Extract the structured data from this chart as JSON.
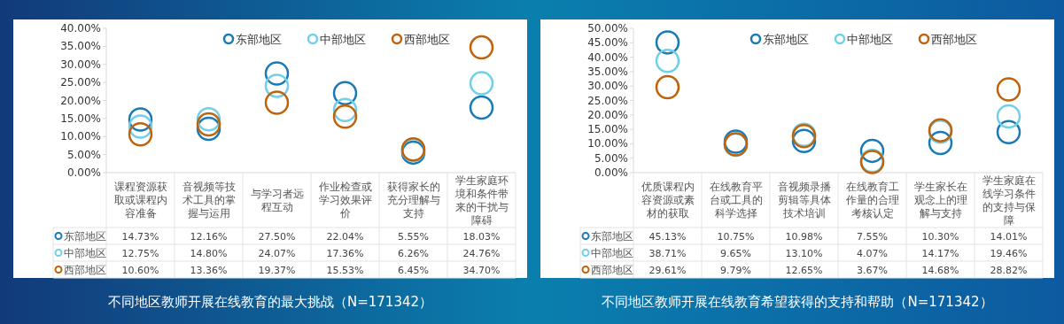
{
  "chart_data": [
    {
      "type": "scatter",
      "title": "不同地区教师开展在线教育的最大挑战（N=171342）",
      "categories": [
        "课程资源获取或课程内容准备",
        "音视频等技术工具的掌握与运用",
        "与学习者远程互动",
        "作业检查或学习效果评价",
        "获得家长的充分理解与支持",
        "学生家庭环境和条件带来的干扰与障碍"
      ],
      "series": [
        {
          "name": "东部地区",
          "color": "#1a7ab5",
          "values": [
            14.73,
            12.16,
            27.5,
            22.04,
            5.55,
            18.03
          ],
          "value_labels": [
            "14.73%",
            "12.16%",
            "27.50%",
            "22.04%",
            "5.55%",
            "18.03%"
          ]
        },
        {
          "name": "中部地区",
          "color": "#6fd0e8",
          "values": [
            12.75,
            14.8,
            24.07,
            17.36,
            6.26,
            24.76
          ],
          "value_labels": [
            "12.75%",
            "14.80%",
            "24.07%",
            "17.36%",
            "6.26%",
            "24.76%"
          ]
        },
        {
          "name": "西部地区",
          "color": "#c0620a",
          "values": [
            10.6,
            13.36,
            19.37,
            15.53,
            6.45,
            34.7
          ],
          "value_labels": [
            "10.60%",
            "13.36%",
            "19.37%",
            "15.53%",
            "6.45%",
            "34.70%"
          ]
        }
      ],
      "ylim": [
        0,
        40
      ],
      "yticks": [
        {
          "value": 0,
          "label": "0.00%"
        },
        {
          "value": 5,
          "label": "5.00%"
        },
        {
          "value": 10,
          "label": "10.00%"
        },
        {
          "value": 15,
          "label": "15.00%"
        },
        {
          "value": 20,
          "label": "20.00%"
        },
        {
          "value": 25,
          "label": "25.00%"
        },
        {
          "value": 30,
          "label": "30.00%"
        },
        {
          "value": 35,
          "label": "35.00%"
        },
        {
          "value": 40,
          "label": "40.00%"
        }
      ],
      "marker": "circle",
      "legend": "top right"
    },
    {
      "type": "scatter",
      "title": "不同地区教师开展在线教育希望获得的支持和帮助（N=171342）",
      "categories": [
        "优质课程内容资源或素材的获取",
        "在线教育平台或工具的科学选择",
        "音视频录播剪辑等具体技术培训",
        "在线教育工作量的合理考核认定",
        "学生家长在观念上的理解与支持",
        "学生家庭在线学习条件的支持与保障"
      ],
      "series": [
        {
          "name": "东部地区",
          "color": "#1a7ab5",
          "values": [
            45.13,
            10.75,
            10.98,
            7.55,
            10.3,
            14.01
          ],
          "value_labels": [
            "45.13%",
            "10.75%",
            "10.98%",
            "7.55%",
            "10.30%",
            "14.01%"
          ]
        },
        {
          "name": "中部地区",
          "color": "#6fd0e8",
          "values": [
            38.71,
            9.65,
            13.1,
            4.07,
            14.17,
            19.46
          ],
          "value_labels": [
            "38.71%",
            "9.65%",
            "13.10%",
            "4.07%",
            "14.17%",
            "19.46%"
          ]
        },
        {
          "name": "西部地区",
          "color": "#c0620a",
          "values": [
            29.61,
            9.79,
            12.65,
            3.67,
            14.68,
            28.82
          ],
          "value_labels": [
            "29.61%",
            "9.79%",
            "12.65%",
            "3.67%",
            "14.68%",
            "28.82%"
          ]
        }
      ],
      "ylim": [
        0,
        50
      ],
      "yticks": [
        {
          "value": 0,
          "label": "0.00%"
        },
        {
          "value": 5,
          "label": "5.00%"
        },
        {
          "value": 10,
          "label": "10.00%"
        },
        {
          "value": 15,
          "label": "15.00%"
        },
        {
          "value": 20,
          "label": "20.00%"
        },
        {
          "value": 25,
          "label": "25.00%"
        },
        {
          "value": 30,
          "label": "30.00%"
        },
        {
          "value": 35,
          "label": "35.00%"
        },
        {
          "value": 40,
          "label": "40.00%"
        },
        {
          "value": 45,
          "label": "45.00%"
        },
        {
          "value": 50,
          "label": "50.00%"
        }
      ],
      "marker": "circle",
      "legend": "top right"
    }
  ]
}
